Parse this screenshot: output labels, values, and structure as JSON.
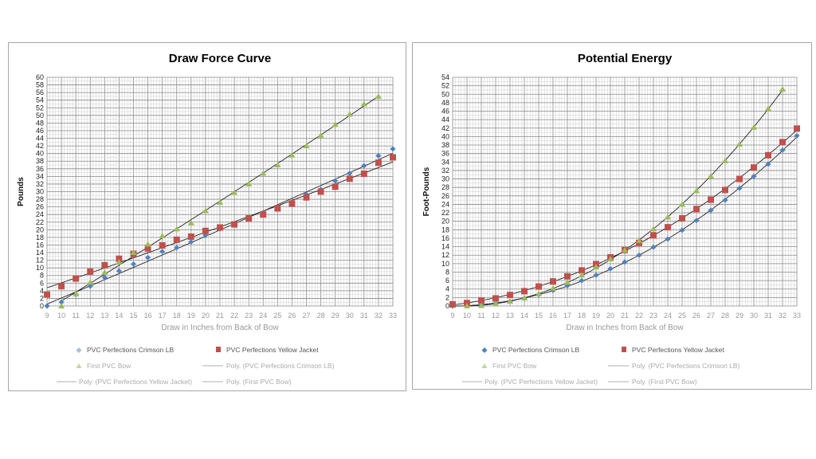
{
  "chart_data": [
    {
      "type": "scatter",
      "title": "Draw Force Curve",
      "xlabel": "Draw in Inches from Back of Bow",
      "ylabel": "Pounds",
      "xlim": [
        9,
        33
      ],
      "ylim": [
        0,
        60
      ],
      "x_ticks": [
        9,
        10,
        11,
        12,
        13,
        14,
        15,
        16,
        17,
        18,
        19,
        20,
        21,
        22,
        23,
        24,
        25,
        26,
        27,
        28,
        29,
        30,
        31,
        32,
        33
      ],
      "y_ticks": [
        0,
        2,
        4,
        6,
        8,
        10,
        12,
        14,
        16,
        18,
        20,
        22,
        24,
        26,
        28,
        30,
        32,
        34,
        36,
        38,
        40,
        42,
        44,
        46,
        48,
        50,
        52,
        54,
        56,
        58,
        60
      ],
      "grid": true,
      "legend_position": "bottom",
      "series": [
        {
          "name": "PVC Perfections Crimson LB",
          "marker": "diamond",
          "color": "#4f81bd",
          "x": [
            9,
            10,
            11,
            12,
            13,
            14,
            15,
            16,
            17,
            18,
            19,
            20,
            21,
            22,
            23,
            24,
            25,
            26,
            27,
            28,
            29,
            30,
            31,
            32,
            33
          ],
          "y": [
            0,
            1,
            3,
            5.2,
            7.5,
            9.2,
            11,
            12.7,
            14.3,
            15.3,
            16.8,
            18.6,
            20.2,
            21.4,
            23,
            24.5,
            25.8,
            27.2,
            29.3,
            30.6,
            32.8,
            34.8,
            36.8,
            39.4,
            41.2
          ]
        },
        {
          "name": "PVC Perfections Yellow Jacket",
          "marker": "square",
          "color": "#c0504d",
          "x": [
            9,
            10,
            11,
            12,
            13,
            14,
            15,
            16,
            17,
            18,
            19,
            20,
            21,
            22,
            23,
            24,
            25,
            26,
            27,
            28,
            29,
            30,
            31,
            32,
            33
          ],
          "y": [
            3,
            5.2,
            7.2,
            9,
            10.7,
            12.4,
            13.7,
            15.1,
            15.9,
            17.4,
            18.2,
            19.7,
            20.6,
            21.4,
            23,
            24,
            25.6,
            26.9,
            28.5,
            30,
            31.3,
            33.4,
            34.7,
            37.6,
            39
          ]
        },
        {
          "name": "First PVC Bow",
          "marker": "triangle",
          "color": "#9bbb59",
          "x": [
            10,
            11,
            12,
            13,
            14,
            15,
            16,
            17,
            18,
            19,
            20,
            21,
            22,
            23,
            24,
            25,
            26,
            27,
            28,
            29,
            30,
            31,
            32
          ],
          "y": [
            0,
            3.2,
            6.2,
            8.8,
            11.5,
            14,
            16.2,
            18.4,
            20.2,
            21.8,
            25,
            27.2,
            29.8,
            32,
            34.8,
            37,
            39.6,
            42,
            44.8,
            47.6,
            50.3,
            53,
            55
          ]
        }
      ],
      "trendlines": [
        "Poly. (PVC Perfections Crimson LB)",
        "Poly. (PVC Perfections Yellow Jacket)",
        "Poly. (First PVC Bow)"
      ]
    },
    {
      "type": "scatter",
      "title": "Potential Energy",
      "xlabel": "Draw in Inches from Back of Bow",
      "ylabel": "Foot-Pounds",
      "xlim": [
        9,
        33
      ],
      "ylim": [
        0,
        54
      ],
      "x_ticks": [
        9,
        10,
        11,
        12,
        13,
        14,
        15,
        16,
        17,
        18,
        19,
        20,
        21,
        22,
        23,
        24,
        25,
        26,
        27,
        28,
        29,
        30,
        31,
        32,
        33
      ],
      "y_ticks": [
        0,
        2,
        4,
        6,
        8,
        10,
        12,
        14,
        16,
        18,
        20,
        22,
        24,
        26,
        28,
        30,
        32,
        34,
        36,
        38,
        40,
        42,
        44,
        46,
        48,
        50,
        52,
        54
      ],
      "grid": true,
      "legend_position": "bottom",
      "series": [
        {
          "name": "PVC Perfections Crimson LB",
          "marker": "diamond",
          "color": "#4f81bd",
          "x": [
            9,
            10,
            11,
            12,
            13,
            14,
            15,
            16,
            17,
            18,
            19,
            20,
            21,
            22,
            23,
            24,
            25,
            26,
            27,
            28,
            29,
            30,
            31,
            32,
            33
          ],
          "y": [
            0,
            0.1,
            0.3,
            0.6,
            1.1,
            1.8,
            2.7,
            3.7,
            4.8,
            6,
            7.3,
            8.8,
            10.4,
            12,
            13.9,
            15.8,
            17.9,
            20.2,
            22.6,
            25,
            27.8,
            30.6,
            33.5,
            36.8,
            40.2
          ]
        },
        {
          "name": "PVC Perfections Yellow Jacket",
          "marker": "square",
          "color": "#c0504d",
          "x": [
            9,
            10,
            11,
            12,
            13,
            14,
            15,
            16,
            17,
            18,
            19,
            20,
            21,
            22,
            23,
            24,
            25,
            26,
            27,
            28,
            29,
            30,
            31,
            32,
            33
          ],
          "y": [
            0.4,
            0.7,
            1.3,
            1.8,
            2.6,
            3.5,
            4.6,
            5.8,
            7,
            8.4,
            9.9,
            11.5,
            13.2,
            14.9,
            16.7,
            18.6,
            20.7,
            22.9,
            25.1,
            27.4,
            30,
            32.7,
            35.6,
            38.7,
            41.9
          ]
        },
        {
          "name": "First PVC Bow",
          "marker": "triangle",
          "color": "#9bbb59",
          "x": [
            10,
            11,
            12,
            13,
            14,
            15,
            16,
            17,
            18,
            19,
            20,
            21,
            22,
            23,
            24,
            25,
            26,
            27,
            28,
            29,
            30,
            31,
            32
          ],
          "y": [
            0,
            0.1,
            0.5,
            1.1,
            1.9,
            2.9,
            4.2,
            5.6,
            7.3,
            9.2,
            11.1,
            13.2,
            15.4,
            18.2,
            21,
            24,
            27.2,
            30.7,
            34.3,
            38.2,
            42.2,
            46.6,
            51.2
          ]
        }
      ],
      "trendlines": [
        "Poly. (PVC Perfections Crimson LB)",
        "Poly. (PVC Perfections Yellow Jacket)",
        "Poly. (First PVC Bow)"
      ]
    }
  ],
  "charts": {
    "left": {
      "title": "Draw Force Curve",
      "xlabel": "Draw in Inches from Back of Bow",
      "ylabel": "Pounds"
    },
    "right": {
      "title": "Potential Energy",
      "xlabel": "Draw in Inches from Back of Bow",
      "ylabel": "Foot-Pounds"
    },
    "legend": {
      "crimson": "PVC Perfections Crimson LB",
      "yellow": "PVC Perfections Yellow Jacket",
      "first": "First PVC Bow",
      "poly_crimson": "Poly. (PVC Perfections Crimson LB)",
      "poly_yellow": "Poly. (PVC Perfections Yellow Jacket)",
      "poly_first": "Poly. (First PVC Bow)"
    }
  }
}
